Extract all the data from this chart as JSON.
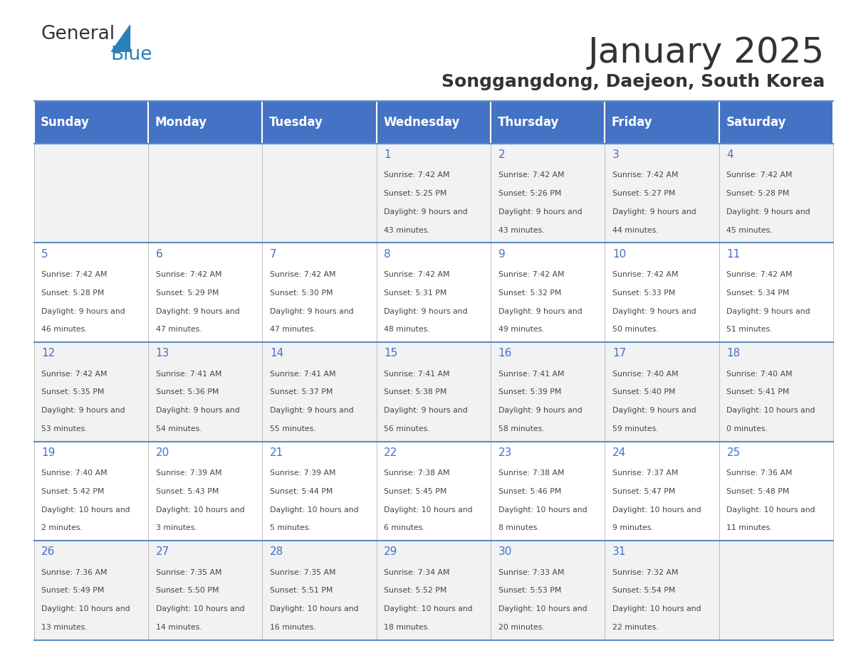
{
  "title": "January 2025",
  "subtitle": "Songgangdong, Daejeon, South Korea",
  "header_color": "#4472C4",
  "header_text_color": "#FFFFFF",
  "cell_bg_even": "#F2F2F2",
  "cell_bg_odd": "#FFFFFF",
  "text_color": "#333333",
  "day_number_color": "#4472C4",
  "cell_text_color": "#444444",
  "border_color": "#5B8CC4",
  "days_of_week": [
    "Sunday",
    "Monday",
    "Tuesday",
    "Wednesday",
    "Thursday",
    "Friday",
    "Saturday"
  ],
  "calendar_data": [
    [
      null,
      null,
      null,
      {
        "day": 1,
        "sunrise": "7:42 AM",
        "sunset": "5:25 PM",
        "daylight": "9 hours and 43 minutes"
      },
      {
        "day": 2,
        "sunrise": "7:42 AM",
        "sunset": "5:26 PM",
        "daylight": "9 hours and 43 minutes"
      },
      {
        "day": 3,
        "sunrise": "7:42 AM",
        "sunset": "5:27 PM",
        "daylight": "9 hours and 44 minutes"
      },
      {
        "day": 4,
        "sunrise": "7:42 AM",
        "sunset": "5:28 PM",
        "daylight": "9 hours and 45 minutes"
      }
    ],
    [
      {
        "day": 5,
        "sunrise": "7:42 AM",
        "sunset": "5:28 PM",
        "daylight": "9 hours and 46 minutes"
      },
      {
        "day": 6,
        "sunrise": "7:42 AM",
        "sunset": "5:29 PM",
        "daylight": "9 hours and 47 minutes"
      },
      {
        "day": 7,
        "sunrise": "7:42 AM",
        "sunset": "5:30 PM",
        "daylight": "9 hours and 47 minutes"
      },
      {
        "day": 8,
        "sunrise": "7:42 AM",
        "sunset": "5:31 PM",
        "daylight": "9 hours and 48 minutes"
      },
      {
        "day": 9,
        "sunrise": "7:42 AM",
        "sunset": "5:32 PM",
        "daylight": "9 hours and 49 minutes"
      },
      {
        "day": 10,
        "sunrise": "7:42 AM",
        "sunset": "5:33 PM",
        "daylight": "9 hours and 50 minutes"
      },
      {
        "day": 11,
        "sunrise": "7:42 AM",
        "sunset": "5:34 PM",
        "daylight": "9 hours and 51 minutes"
      }
    ],
    [
      {
        "day": 12,
        "sunrise": "7:42 AM",
        "sunset": "5:35 PM",
        "daylight": "9 hours and 53 minutes"
      },
      {
        "day": 13,
        "sunrise": "7:41 AM",
        "sunset": "5:36 PM",
        "daylight": "9 hours and 54 minutes"
      },
      {
        "day": 14,
        "sunrise": "7:41 AM",
        "sunset": "5:37 PM",
        "daylight": "9 hours and 55 minutes"
      },
      {
        "day": 15,
        "sunrise": "7:41 AM",
        "sunset": "5:38 PM",
        "daylight": "9 hours and 56 minutes"
      },
      {
        "day": 16,
        "sunrise": "7:41 AM",
        "sunset": "5:39 PM",
        "daylight": "9 hours and 58 minutes"
      },
      {
        "day": 17,
        "sunrise": "7:40 AM",
        "sunset": "5:40 PM",
        "daylight": "9 hours and 59 minutes"
      },
      {
        "day": 18,
        "sunrise": "7:40 AM",
        "sunset": "5:41 PM",
        "daylight": "10 hours and 0 minutes"
      }
    ],
    [
      {
        "day": 19,
        "sunrise": "7:40 AM",
        "sunset": "5:42 PM",
        "daylight": "10 hours and 2 minutes"
      },
      {
        "day": 20,
        "sunrise": "7:39 AM",
        "sunset": "5:43 PM",
        "daylight": "10 hours and 3 minutes"
      },
      {
        "day": 21,
        "sunrise": "7:39 AM",
        "sunset": "5:44 PM",
        "daylight": "10 hours and 5 minutes"
      },
      {
        "day": 22,
        "sunrise": "7:38 AM",
        "sunset": "5:45 PM",
        "daylight": "10 hours and 6 minutes"
      },
      {
        "day": 23,
        "sunrise": "7:38 AM",
        "sunset": "5:46 PM",
        "daylight": "10 hours and 8 minutes"
      },
      {
        "day": 24,
        "sunrise": "7:37 AM",
        "sunset": "5:47 PM",
        "daylight": "10 hours and 9 minutes"
      },
      {
        "day": 25,
        "sunrise": "7:36 AM",
        "sunset": "5:48 PM",
        "daylight": "10 hours and 11 minutes"
      }
    ],
    [
      {
        "day": 26,
        "sunrise": "7:36 AM",
        "sunset": "5:49 PM",
        "daylight": "10 hours and 13 minutes"
      },
      {
        "day": 27,
        "sunrise": "7:35 AM",
        "sunset": "5:50 PM",
        "daylight": "10 hours and 14 minutes"
      },
      {
        "day": 28,
        "sunrise": "7:35 AM",
        "sunset": "5:51 PM",
        "daylight": "10 hours and 16 minutes"
      },
      {
        "day": 29,
        "sunrise": "7:34 AM",
        "sunset": "5:52 PM",
        "daylight": "10 hours and 18 minutes"
      },
      {
        "day": 30,
        "sunrise": "7:33 AM",
        "sunset": "5:53 PM",
        "daylight": "10 hours and 20 minutes"
      },
      {
        "day": 31,
        "sunrise": "7:32 AM",
        "sunset": "5:54 PM",
        "daylight": "10 hours and 22 minutes"
      },
      null
    ]
  ],
  "logo_text1": "General",
  "logo_text2": "Blue",
  "logo_color1": "#333333",
  "logo_color2": "#2980B9",
  "logo_triangle_color": "#2980B9"
}
